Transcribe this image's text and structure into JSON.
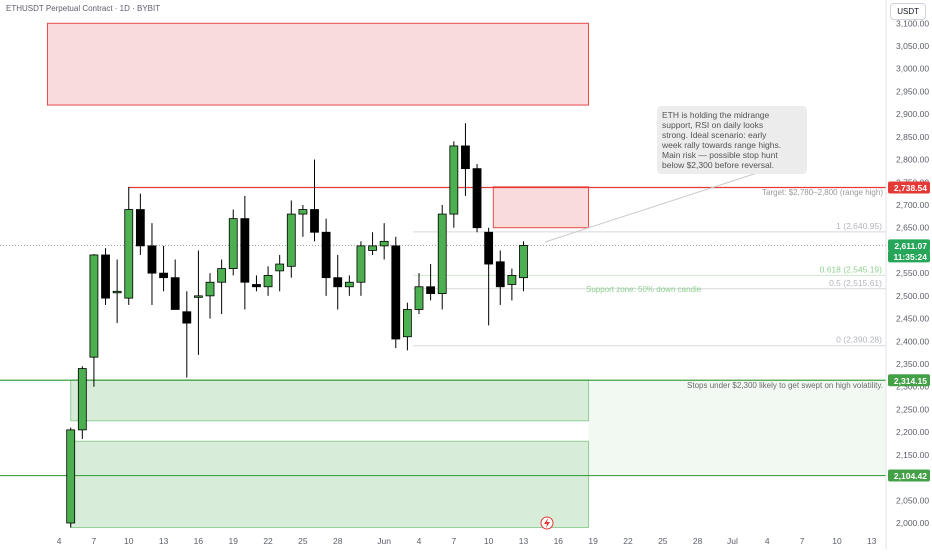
{
  "header": {
    "symbol_title": "ETHUSDT Perpetual Contract · 1D · BYBIT",
    "currency": "USDT"
  },
  "note": {
    "text": "ETH is holding the midrange\nsupport, RSI on daily looks\nstrong. Ideal scenario: early\nweek rally towards range highs.\nMain risk — possible stop hunt\nbelow $2,300 before reversal."
  },
  "annotations": {
    "target": "Target: $2,780–2,800 (range high)",
    "support_zone": "Support zone: 50% down candle",
    "stops": "Stops under $2,300 likely to get swept on high volatility."
  },
  "badges": {
    "range_high": "2,738.54",
    "current_price": "2,611.07",
    "countdown": "11:35:24",
    "support_line": "2,314.15",
    "lower_line": "2,104.42"
  },
  "colors": {
    "up": "#4caf50",
    "down": "#000000",
    "resistance": "#e53935",
    "support": "#43a047",
    "price_badge": "#27a65a",
    "fib": "#b2b5be"
  },
  "icons": {
    "event_marker": "lightning-icon"
  },
  "chart_data": {
    "type": "candlestick",
    "title": "ETHUSDT Perpetual Contract · 1D · BYBIT",
    "ylim": [
      1990,
      3130
    ],
    "y_ticks": [
      2000,
      2050,
      2100,
      2150,
      2200,
      2250,
      2300,
      2350,
      2400,
      2450,
      2500,
      2550,
      2600,
      2650,
      2700,
      2750,
      2800,
      2850,
      2900,
      2950,
      3000,
      3050,
      3100
    ],
    "y_tick_labels": [
      "2,000.00",
      "2,050.00",
      "2,100.00",
      "2,150.00",
      "2,200.00",
      "2,250.00",
      "2,300.00",
      "2,350.00",
      "2,400.00",
      "2,450.00",
      "2,500.00",
      "2,550.00",
      "2,600.00",
      "2,650.00",
      "2,700.00",
      "2,750.00",
      "2,800.00",
      "2,850.00",
      "2,900.00",
      "2,950.00",
      "3,000.00",
      "3,050.00",
      "3,100.00"
    ],
    "x_tick_labels": [
      {
        "i": -1,
        "label": "4"
      },
      {
        "i": 2,
        "label": "7"
      },
      {
        "i": 5,
        "label": "10"
      },
      {
        "i": 8,
        "label": "13"
      },
      {
        "i": 11,
        "label": "16"
      },
      {
        "i": 14,
        "label": "19"
      },
      {
        "i": 17,
        "label": "22"
      },
      {
        "i": 20,
        "label": "25"
      },
      {
        "i": 23,
        "label": "28"
      },
      {
        "i": 27,
        "label": "Jun"
      },
      {
        "i": 30,
        "label": "4"
      },
      {
        "i": 33,
        "label": "7"
      },
      {
        "i": 36,
        "label": "10"
      },
      {
        "i": 39,
        "label": "13"
      },
      {
        "i": 42,
        "label": "16"
      },
      {
        "i": 45,
        "label": "19"
      },
      {
        "i": 48,
        "label": "22"
      },
      {
        "i": 51,
        "label": "25"
      },
      {
        "i": 54,
        "label": "28"
      },
      {
        "i": 57,
        "label": "Jul"
      },
      {
        "i": 60,
        "label": "4"
      },
      {
        "i": 63,
        "label": "7"
      },
      {
        "i": 66,
        "label": "10"
      },
      {
        "i": 69,
        "label": "13"
      }
    ],
    "candles": [
      {
        "o": 2000,
        "h": 2210,
        "l": 1990,
        "c": 2205
      },
      {
        "o": 2205,
        "h": 2345,
        "l": 2185,
        "c": 2340
      },
      {
        "o": 2365,
        "h": 2592,
        "l": 2300,
        "c": 2590
      },
      {
        "o": 2590,
        "h": 2605,
        "l": 2480,
        "c": 2495
      },
      {
        "o": 2510,
        "h": 2580,
        "l": 2440,
        "c": 2510
      },
      {
        "o": 2495,
        "h": 2740,
        "l": 2480,
        "c": 2690
      },
      {
        "o": 2690,
        "h": 2725,
        "l": 2590,
        "c": 2610
      },
      {
        "o": 2610,
        "h": 2660,
        "l": 2480,
        "c": 2550
      },
      {
        "o": 2550,
        "h": 2610,
        "l": 2510,
        "c": 2540
      },
      {
        "o": 2540,
        "h": 2580,
        "l": 2480,
        "c": 2470
      },
      {
        "o": 2465,
        "h": 2510,
        "l": 2320,
        "c": 2440
      },
      {
        "o": 2500,
        "h": 2600,
        "l": 2370,
        "c": 2500
      },
      {
        "o": 2500,
        "h": 2550,
        "l": 2450,
        "c": 2530
      },
      {
        "o": 2530,
        "h": 2580,
        "l": 2460,
        "c": 2560
      },
      {
        "o": 2560,
        "h": 2690,
        "l": 2545,
        "c": 2670
      },
      {
        "o": 2670,
        "h": 2720,
        "l": 2470,
        "c": 2530
      },
      {
        "o": 2525,
        "h": 2545,
        "l": 2510,
        "c": 2520
      },
      {
        "o": 2520,
        "h": 2565,
        "l": 2500,
        "c": 2545
      },
      {
        "o": 2555,
        "h": 2590,
        "l": 2510,
        "c": 2570
      },
      {
        "o": 2565,
        "h": 2710,
        "l": 2540,
        "c": 2680
      },
      {
        "o": 2680,
        "h": 2700,
        "l": 2630,
        "c": 2690
      },
      {
        "o": 2690,
        "h": 2800,
        "l": 2620,
        "c": 2640
      },
      {
        "o": 2640,
        "h": 2670,
        "l": 2500,
        "c": 2540
      },
      {
        "o": 2540,
        "h": 2590,
        "l": 2470,
        "c": 2520
      },
      {
        "o": 2520,
        "h": 2545,
        "l": 2500,
        "c": 2530
      },
      {
        "o": 2530,
        "h": 2620,
        "l": 2500,
        "c": 2610
      },
      {
        "o": 2600,
        "h": 2640,
        "l": 2590,
        "c": 2610
      },
      {
        "o": 2610,
        "h": 2660,
        "l": 2580,
        "c": 2620
      },
      {
        "o": 2610,
        "h": 2630,
        "l": 2385,
        "c": 2405
      },
      {
        "o": 2410,
        "h": 2485,
        "l": 2380,
        "c": 2470
      },
      {
        "o": 2470,
        "h": 2550,
        "l": 2460,
        "c": 2520
      },
      {
        "o": 2520,
        "h": 2570,
        "l": 2490,
        "c": 2505
      },
      {
        "o": 2505,
        "h": 2700,
        "l": 2470,
        "c": 2680
      },
      {
        "o": 2680,
        "h": 2840,
        "l": 2650,
        "c": 2830
      },
      {
        "o": 2830,
        "h": 2880,
        "l": 2720,
        "c": 2780
      },
      {
        "o": 2780,
        "h": 2790,
        "l": 2640,
        "c": 2650
      },
      {
        "o": 2640,
        "h": 2650,
        "l": 2435,
        "c": 2570
      },
      {
        "o": 2575,
        "h": 2600,
        "l": 2480,
        "c": 2520
      },
      {
        "o": 2525,
        "h": 2560,
        "l": 2490,
        "c": 2545
      },
      {
        "o": 2540,
        "h": 2620,
        "l": 2510,
        "c": 2611
      }
    ],
    "horizontal_levels": [
      {
        "price": 2738.54,
        "label": "2,738.54"
      },
      {
        "price": 2314.15,
        "label": "2,314.15"
      },
      {
        "price": 2104.42,
        "label": "2,104.42"
      }
    ],
    "fibonacci": [
      {
        "level": "1",
        "price": 2640.95,
        "label": "1 (2,640.95)"
      },
      {
        "level": "0.618",
        "price": 2545.19,
        "label": "0.618 (2,545.19)"
      },
      {
        "level": "0.5",
        "price": 2515.61,
        "label": "0.5 (2,515.61)"
      },
      {
        "level": "0",
        "price": 2390.28,
        "label": "0 (2,390.28)"
      }
    ],
    "zones": [
      {
        "kind": "resistance",
        "from_i": -2,
        "to_i": 44.6,
        "low": 2920,
        "high": 3100
      },
      {
        "kind": "resistance",
        "from_i": 36.4,
        "to_i": 44.6,
        "low": 2650,
        "high": 2740
      },
      {
        "kind": "support",
        "from_i": 0,
        "to_i": 44.6,
        "low": 2225,
        "high": 2315
      },
      {
        "kind": "support",
        "from_i": 0,
        "to_i": 44.6,
        "low": 1990,
        "high": 2180
      }
    ],
    "current_price": 2611.07,
    "grid": false,
    "legend": "none"
  }
}
